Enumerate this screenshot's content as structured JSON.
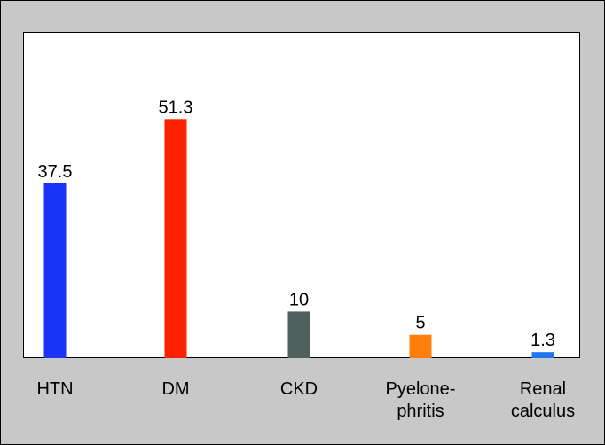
{
  "chart_data": {
    "type": "bar",
    "categories": [
      [
        "HTN"
      ],
      [
        "DM"
      ],
      [
        "CKD"
      ],
      [
        "Pyelone-",
        "phritis"
      ],
      [
        "Renal",
        "calculus"
      ]
    ],
    "values": [
      37.5,
      51.3,
      10,
      5,
      1.3
    ],
    "value_labels": [
      "37.5",
      "51.3",
      "10",
      "5",
      "1.3"
    ],
    "colors": [
      "#1a35f5",
      "#ff2200",
      "#4f5f5c",
      "#ff7f0a",
      "#2277ee"
    ],
    "ylim": [
      0,
      70
    ],
    "grid": false,
    "title": "",
    "xlabel": "",
    "ylabel": ""
  }
}
